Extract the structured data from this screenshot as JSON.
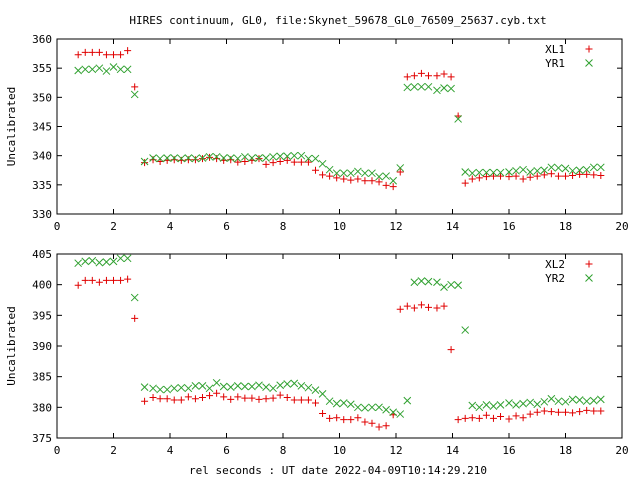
{
  "title": "HIRES continuum, GL0, file:Skynet_59678_GL0_76509_25637.cyb.txt",
  "xlabel": "rel seconds : UT date 2022-04-09T10:14:29.210",
  "colors": {
    "plus": "#e00000",
    "cross": "#2fa02f",
    "axis": "#000000"
  },
  "chart_data": [
    {
      "type": "scatter",
      "ylabel": "Uncalibrated",
      "xlim": [
        0,
        20
      ],
      "ylim": [
        330,
        360
      ],
      "xticks": [
        0,
        2,
        4,
        6,
        8,
        10,
        12,
        14,
        16,
        18,
        20
      ],
      "yticks": [
        330,
        335,
        340,
        345,
        350,
        355,
        360
      ],
      "legend_position": "top-right",
      "series": [
        {
          "name": "XL1",
          "marker": "plus",
          "x": [
            0.75,
            1.0,
            1.25,
            1.5,
            1.75,
            2.0,
            2.25,
            2.5,
            2.75,
            3.1,
            3.4,
            3.65,
            3.9,
            4.15,
            4.4,
            4.65,
            4.9,
            5.15,
            5.4,
            5.65,
            5.9,
            6.15,
            6.4,
            6.65,
            6.9,
            7.15,
            7.4,
            7.65,
            7.9,
            8.15,
            8.4,
            8.65,
            8.9,
            9.15,
            9.4,
            9.65,
            9.9,
            10.15,
            10.4,
            10.65,
            10.9,
            11.15,
            11.4,
            11.65,
            11.9,
            12.15,
            12.4,
            12.65,
            12.9,
            13.15,
            13.45,
            13.7,
            13.95,
            14.2,
            14.45,
            14.7,
            14.95,
            15.2,
            15.45,
            15.7,
            16.0,
            16.25,
            16.5,
            16.75,
            17.0,
            17.25,
            17.5,
            17.75,
            18.0,
            18.25,
            18.5,
            18.75,
            19.0,
            19.25
          ],
          "y": [
            357.3,
            357.7,
            357.7,
            357.7,
            357.3,
            357.3,
            357.3,
            358.0,
            351.8,
            338.8,
            339.3,
            339.0,
            339.2,
            339.3,
            339.2,
            339.3,
            339.3,
            339.5,
            339.7,
            339.5,
            339.2,
            339.3,
            338.9,
            339.0,
            339.2,
            339.5,
            338.5,
            338.8,
            339.0,
            339.2,
            338.9,
            338.9,
            338.9,
            337.5,
            336.7,
            336.5,
            336.2,
            336.0,
            335.8,
            336.0,
            335.7,
            335.7,
            335.5,
            334.9,
            334.7,
            337.2,
            353.5,
            353.7,
            354.1,
            353.7,
            353.7,
            354.0,
            353.5,
            346.8,
            335.3,
            336.0,
            336.2,
            336.4,
            336.5,
            336.5,
            336.4,
            336.5,
            336.0,
            336.3,
            336.5,
            336.7,
            336.9,
            336.5,
            336.5,
            336.6,
            336.8,
            336.8,
            336.7,
            336.6
          ]
        },
        {
          "name": "YR1",
          "marker": "cross",
          "x": [
            0.75,
            1.0,
            1.25,
            1.5,
            1.75,
            2.0,
            2.25,
            2.5,
            2.75,
            3.1,
            3.4,
            3.65,
            3.9,
            4.15,
            4.4,
            4.65,
            4.9,
            5.15,
            5.4,
            5.65,
            5.9,
            6.15,
            6.4,
            6.65,
            6.9,
            7.15,
            7.4,
            7.65,
            7.9,
            8.15,
            8.4,
            8.65,
            8.9,
            9.15,
            9.4,
            9.65,
            9.9,
            10.15,
            10.4,
            10.65,
            10.9,
            11.15,
            11.4,
            11.65,
            11.9,
            12.15,
            12.4,
            12.65,
            12.9,
            13.15,
            13.45,
            13.7,
            13.95,
            14.2,
            14.45,
            14.7,
            14.95,
            15.2,
            15.45,
            15.7,
            16.0,
            16.25,
            16.5,
            16.75,
            17.0,
            17.25,
            17.5,
            17.75,
            18.0,
            18.25,
            18.5,
            18.75,
            19.0,
            19.25
          ],
          "y": [
            354.6,
            354.8,
            354.8,
            355.0,
            354.5,
            355.2,
            354.8,
            354.8,
            350.5,
            339.0,
            339.6,
            339.5,
            339.6,
            339.6,
            339.5,
            339.6,
            339.5,
            339.6,
            339.8,
            339.8,
            339.6,
            339.6,
            339.5,
            339.8,
            339.6,
            339.6,
            339.6,
            339.8,
            339.9,
            339.9,
            340.0,
            340.0,
            339.5,
            339.5,
            338.6,
            337.6,
            337.0,
            337.0,
            337.0,
            337.3,
            337.0,
            337.0,
            336.4,
            336.5,
            335.7,
            337.9,
            351.7,
            351.8,
            351.8,
            351.8,
            351.2,
            351.6,
            351.5,
            346.3,
            337.2,
            337.0,
            337.1,
            337.1,
            337.1,
            337.1,
            337.2,
            337.4,
            337.6,
            337.2,
            337.4,
            337.5,
            338.0,
            337.9,
            337.8,
            337.4,
            337.5,
            337.6,
            338.0,
            338.0
          ]
        }
      ]
    },
    {
      "type": "scatter",
      "ylabel": "Uncalibrated",
      "xlabel": "rel seconds : UT date 2022-04-09T10:14:29.210",
      "xlim": [
        0,
        20
      ],
      "ylim": [
        375,
        405
      ],
      "xticks": [
        0,
        2,
        4,
        6,
        8,
        10,
        12,
        14,
        16,
        18,
        20
      ],
      "yticks": [
        375,
        380,
        385,
        390,
        395,
        400,
        405
      ],
      "legend_position": "top-right",
      "series": [
        {
          "name": "XL2",
          "marker": "plus",
          "x": [
            0.75,
            1.0,
            1.25,
            1.5,
            1.75,
            2.0,
            2.25,
            2.5,
            2.75,
            3.1,
            3.4,
            3.65,
            3.9,
            4.15,
            4.4,
            4.65,
            4.9,
            5.15,
            5.4,
            5.65,
            5.9,
            6.15,
            6.4,
            6.65,
            6.9,
            7.15,
            7.4,
            7.65,
            7.9,
            8.15,
            8.4,
            8.65,
            8.9,
            9.15,
            9.4,
            9.65,
            9.9,
            10.15,
            10.4,
            10.65,
            10.9,
            11.15,
            11.4,
            11.65,
            11.9,
            12.15,
            12.4,
            12.65,
            12.9,
            13.15,
            13.45,
            13.7,
            13.95,
            14.2,
            14.45,
            14.7,
            14.95,
            15.2,
            15.45,
            15.7,
            16.0,
            16.25,
            16.5,
            16.75,
            17.0,
            17.25,
            17.5,
            17.75,
            18.0,
            18.25,
            18.5,
            18.75,
            19.0,
            19.25
          ],
          "y": [
            399.9,
            400.7,
            400.7,
            400.4,
            400.7,
            400.7,
            400.7,
            400.9,
            394.5,
            381.0,
            381.6,
            381.4,
            381.4,
            381.2,
            381.2,
            381.7,
            381.4,
            381.6,
            381.9,
            382.3,
            381.7,
            381.3,
            381.7,
            381.5,
            381.5,
            381.3,
            381.4,
            381.5,
            382.0,
            381.6,
            381.2,
            381.2,
            381.2,
            380.7,
            379.0,
            378.2,
            378.3,
            378.0,
            378.0,
            378.3,
            377.6,
            377.4,
            376.8,
            377.0,
            378.8,
            396.0,
            396.5,
            396.2,
            396.7,
            396.3,
            396.2,
            396.5,
            389.4,
            378.0,
            378.2,
            378.3,
            378.2,
            378.7,
            378.2,
            378.5,
            378.1,
            378.6,
            378.3,
            378.9,
            379.2,
            379.4,
            379.3,
            379.2,
            379.2,
            379.1,
            379.3,
            379.5,
            379.4,
            379.4
          ]
        },
        {
          "name": "YR2",
          "marker": "cross",
          "x": [
            0.75,
            1.0,
            1.25,
            1.5,
            1.75,
            2.0,
            2.25,
            2.5,
            2.75,
            3.1,
            3.4,
            3.65,
            3.9,
            4.15,
            4.4,
            4.65,
            4.9,
            5.15,
            5.4,
            5.65,
            5.9,
            6.15,
            6.4,
            6.65,
            6.9,
            7.15,
            7.4,
            7.65,
            7.9,
            8.15,
            8.4,
            8.65,
            8.9,
            9.15,
            9.4,
            9.65,
            9.9,
            10.15,
            10.4,
            10.65,
            10.9,
            11.15,
            11.4,
            11.65,
            11.9,
            12.15,
            12.4,
            12.65,
            12.9,
            13.15,
            13.45,
            13.7,
            13.95,
            14.2,
            14.45,
            14.7,
            14.95,
            15.2,
            15.45,
            15.7,
            16.0,
            16.25,
            16.5,
            16.75,
            17.0,
            17.25,
            17.5,
            17.75,
            18.0,
            18.25,
            18.5,
            18.75,
            19.0,
            19.25
          ],
          "y": [
            403.5,
            403.8,
            403.9,
            403.6,
            403.7,
            403.8,
            404.3,
            404.3,
            397.9,
            383.3,
            383.1,
            382.9,
            382.9,
            383.1,
            383.2,
            383.1,
            383.5,
            383.5,
            383.1,
            384.0,
            383.4,
            383.3,
            383.5,
            383.4,
            383.4,
            383.6,
            383.3,
            383.1,
            383.6,
            383.8,
            383.9,
            383.5,
            383.2,
            382.8,
            382.2,
            381.0,
            380.6,
            380.7,
            380.5,
            380.0,
            379.9,
            380.0,
            380.0,
            379.6,
            379.2,
            378.9,
            381.1,
            400.4,
            400.6,
            400.5,
            400.4,
            399.6,
            400.0,
            399.9,
            392.6,
            380.3,
            380.0,
            380.4,
            380.2,
            380.4,
            380.7,
            380.4,
            380.6,
            380.8,
            380.5,
            380.9,
            381.4,
            381.0,
            380.9,
            381.3,
            381.2,
            381.0,
            381.1,
            381.3
          ]
        }
      ]
    }
  ]
}
